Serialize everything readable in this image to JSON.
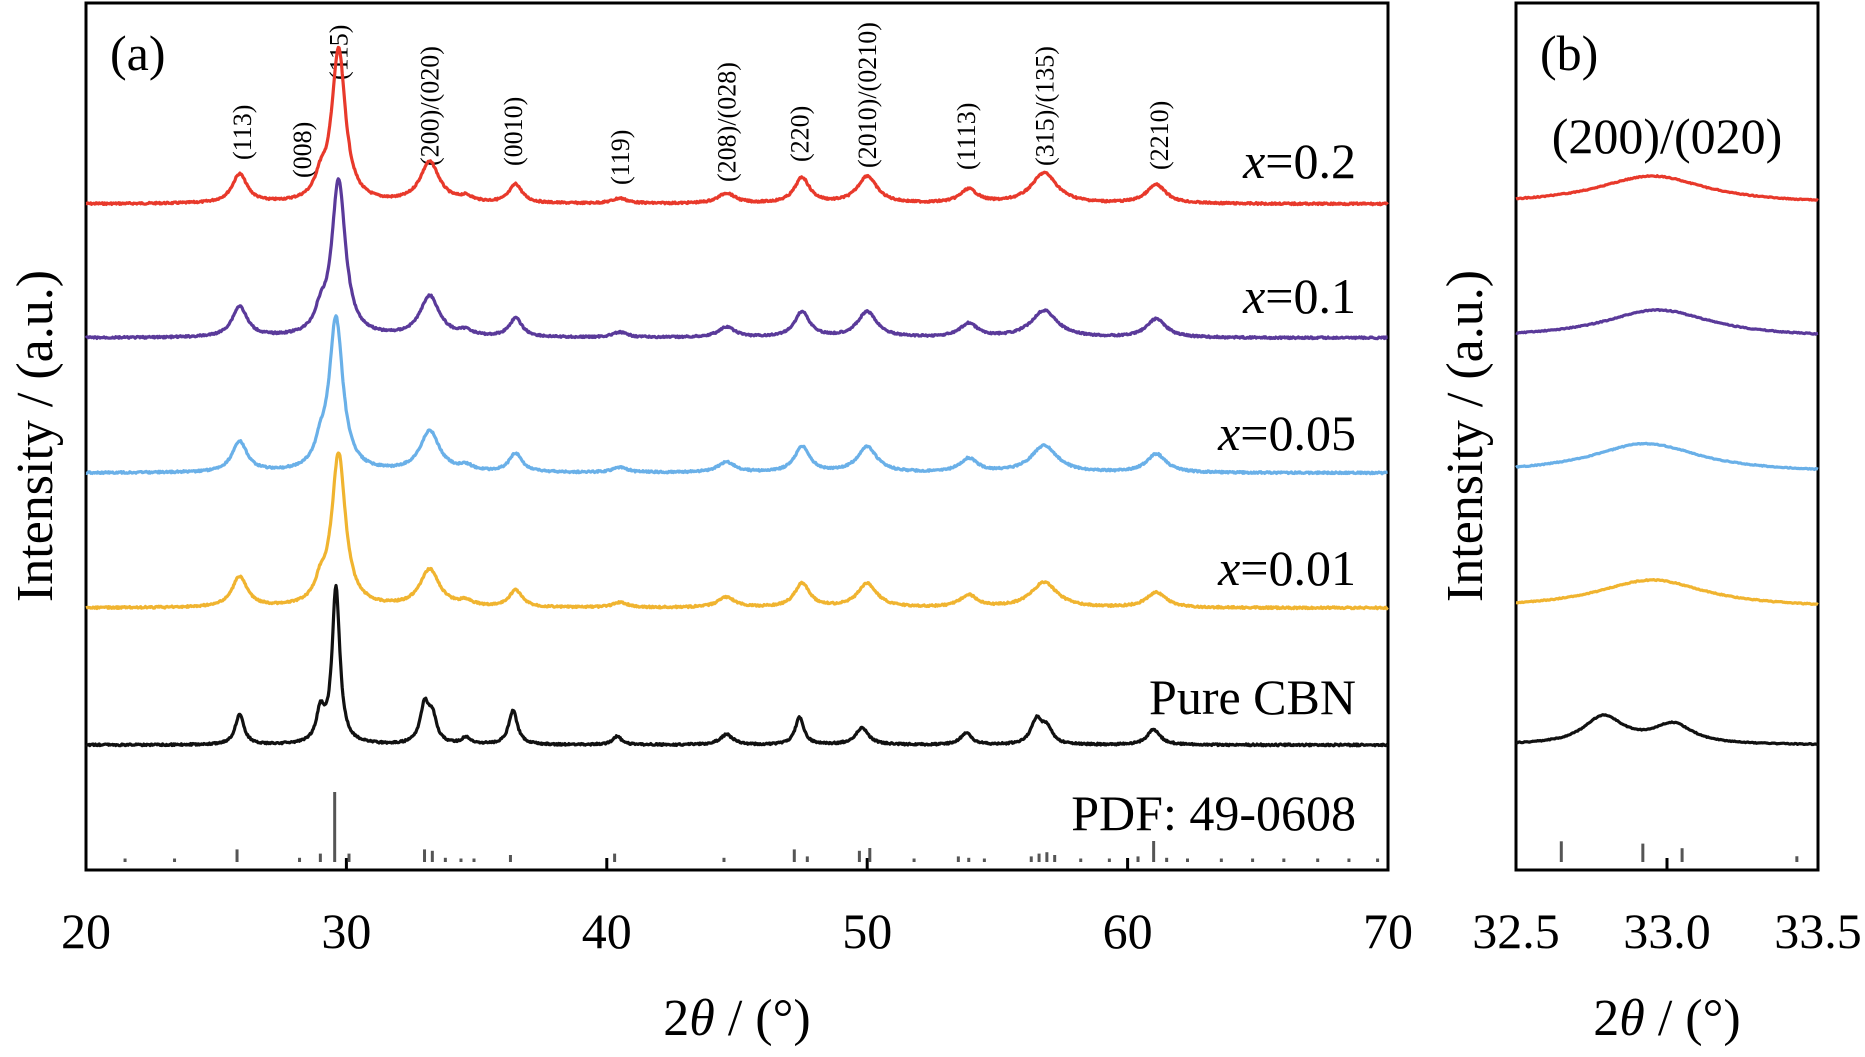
{
  "chart_data": [
    {
      "type": "line",
      "panel_label": "(a)",
      "xlabel_prefix": "2",
      "xlabel_symbol": "θ",
      "xlabel_suffix": " / (°)",
      "ylabel": "Intensity / (a.u.)",
      "xlim": [
        20,
        70
      ],
      "x_ticks": [
        20,
        30,
        40,
        50,
        60,
        70
      ],
      "y_ticks": "none",
      "grid": false,
      "stack_offsets": [
        5,
        4,
        3,
        2,
        1
      ],
      "hkl_labels": [
        {
          "text": "(113)",
          "x": 26.0
        },
        {
          "text": "(008)",
          "x": 28.3
        },
        {
          "text": "(115)",
          "x": 29.7
        },
        {
          "text": "(200)/(020)",
          "x": 33.2
        },
        {
          "text": "(0010)",
          "x": 36.4
        },
        {
          "text": "(119)",
          "x": 40.5
        },
        {
          "text": "(208)/(028)",
          "x": 44.6
        },
        {
          "text": "(220)",
          "x": 47.4
        },
        {
          "text": "(2010)/(0210)",
          "x": 50.0
        },
        {
          "text": "(1113)",
          "x": 53.8
        },
        {
          "text": "(315)/(135)",
          "x": 56.8
        },
        {
          "text": "(2210)",
          "x": 61.2
        }
      ],
      "series": [
        {
          "name_prefix": "x",
          "name_suffix": "=0.2",
          "color": "#e8392b",
          "offset": 5,
          "peaks": [
            {
              "x": 25.9,
              "h": 0.17,
              "w": 0.35
            },
            {
              "x": 29.0,
              "h": 0.1,
              "w": 0.25
            },
            {
              "x": 29.7,
              "h": 0.9,
              "w": 0.32
            },
            {
              "x": 33.2,
              "h": 0.24,
              "w": 0.45
            },
            {
              "x": 34.6,
              "h": 0.03,
              "w": 0.3
            },
            {
              "x": 36.5,
              "h": 0.11,
              "w": 0.3
            },
            {
              "x": 40.5,
              "h": 0.03,
              "w": 0.35
            },
            {
              "x": 44.6,
              "h": 0.06,
              "w": 0.4
            },
            {
              "x": 47.5,
              "h": 0.15,
              "w": 0.35
            },
            {
              "x": 50.0,
              "h": 0.16,
              "w": 0.45
            },
            {
              "x": 53.9,
              "h": 0.08,
              "w": 0.4
            },
            {
              "x": 56.8,
              "h": 0.18,
              "w": 0.6
            },
            {
              "x": 61.1,
              "h": 0.11,
              "w": 0.45
            }
          ]
        },
        {
          "name_prefix": "x",
          "name_suffix": "=0.1",
          "color": "#5a3a9a",
          "offset": 4,
          "peaks": [
            {
              "x": 25.9,
              "h": 0.18,
              "w": 0.35
            },
            {
              "x": 29.0,
              "h": 0.1,
              "w": 0.25
            },
            {
              "x": 29.7,
              "h": 0.92,
              "w": 0.32
            },
            {
              "x": 33.2,
              "h": 0.24,
              "w": 0.45
            },
            {
              "x": 34.6,
              "h": 0.03,
              "w": 0.3
            },
            {
              "x": 36.5,
              "h": 0.11,
              "w": 0.3
            },
            {
              "x": 40.5,
              "h": 0.03,
              "w": 0.35
            },
            {
              "x": 44.6,
              "h": 0.06,
              "w": 0.4
            },
            {
              "x": 47.5,
              "h": 0.15,
              "w": 0.35
            },
            {
              "x": 50.0,
              "h": 0.15,
              "w": 0.45
            },
            {
              "x": 53.9,
              "h": 0.08,
              "w": 0.4
            },
            {
              "x": 56.8,
              "h": 0.16,
              "w": 0.6
            },
            {
              "x": 61.1,
              "h": 0.11,
              "w": 0.45
            }
          ]
        },
        {
          "name_prefix": "x",
          "name_suffix": "=0.05",
          "color": "#6ab0e8",
          "offset": 3,
          "peaks": [
            {
              "x": 25.9,
              "h": 0.18,
              "w": 0.35
            },
            {
              "x": 29.0,
              "h": 0.1,
              "w": 0.25
            },
            {
              "x": 29.6,
              "h": 0.9,
              "w": 0.32
            },
            {
              "x": 33.2,
              "h": 0.24,
              "w": 0.45
            },
            {
              "x": 34.6,
              "h": 0.03,
              "w": 0.3
            },
            {
              "x": 36.5,
              "h": 0.11,
              "w": 0.3
            },
            {
              "x": 40.5,
              "h": 0.03,
              "w": 0.35
            },
            {
              "x": 44.6,
              "h": 0.06,
              "w": 0.4
            },
            {
              "x": 47.5,
              "h": 0.15,
              "w": 0.35
            },
            {
              "x": 50.0,
              "h": 0.15,
              "w": 0.45
            },
            {
              "x": 53.9,
              "h": 0.08,
              "w": 0.4
            },
            {
              "x": 56.8,
              "h": 0.16,
              "w": 0.6
            },
            {
              "x": 61.1,
              "h": 0.11,
              "w": 0.45
            }
          ]
        },
        {
          "name_prefix": "x",
          "name_suffix": "=0.01",
          "color": "#f0b430",
          "offset": 2,
          "peaks": [
            {
              "x": 25.9,
              "h": 0.18,
              "w": 0.35
            },
            {
              "x": 29.0,
              "h": 0.1,
              "w": 0.25
            },
            {
              "x": 29.7,
              "h": 0.9,
              "w": 0.32
            },
            {
              "x": 33.2,
              "h": 0.22,
              "w": 0.45
            },
            {
              "x": 34.6,
              "h": 0.03,
              "w": 0.3
            },
            {
              "x": 36.5,
              "h": 0.1,
              "w": 0.3
            },
            {
              "x": 40.5,
              "h": 0.03,
              "w": 0.35
            },
            {
              "x": 44.6,
              "h": 0.06,
              "w": 0.4
            },
            {
              "x": 47.5,
              "h": 0.14,
              "w": 0.35
            },
            {
              "x": 50.0,
              "h": 0.14,
              "w": 0.45
            },
            {
              "x": 53.9,
              "h": 0.07,
              "w": 0.4
            },
            {
              "x": 56.8,
              "h": 0.15,
              "w": 0.6
            },
            {
              "x": 61.1,
              "h": 0.09,
              "w": 0.45
            }
          ]
        },
        {
          "name_prefix": "",
          "name_suffix": "Pure CBN",
          "color": "#111111",
          "offset": 1,
          "peaks": [
            {
              "x": 25.9,
              "h": 0.18,
              "w": 0.2
            },
            {
              "x": 29.0,
              "h": 0.18,
              "w": 0.18
            },
            {
              "x": 29.6,
              "h": 0.92,
              "w": 0.18
            },
            {
              "x": 33.0,
              "h": 0.22,
              "w": 0.2
            },
            {
              "x": 33.3,
              "h": 0.15,
              "w": 0.2
            },
            {
              "x": 34.6,
              "h": 0.04,
              "w": 0.2
            },
            {
              "x": 36.4,
              "h": 0.2,
              "w": 0.2
            },
            {
              "x": 40.4,
              "h": 0.05,
              "w": 0.2
            },
            {
              "x": 44.6,
              "h": 0.06,
              "w": 0.3
            },
            {
              "x": 47.4,
              "h": 0.16,
              "w": 0.2
            },
            {
              "x": 49.8,
              "h": 0.1,
              "w": 0.3
            },
            {
              "x": 53.8,
              "h": 0.07,
              "w": 0.25
            },
            {
              "x": 56.5,
              "h": 0.14,
              "w": 0.25
            },
            {
              "x": 56.9,
              "h": 0.09,
              "w": 0.25
            },
            {
              "x": 61.0,
              "h": 0.09,
              "w": 0.3
            }
          ]
        }
      ],
      "reference": {
        "label": "PDF: 49-0608",
        "color": "#555555",
        "sticks": [
          {
            "x": 21.5,
            "h": 0.05
          },
          {
            "x": 23.4,
            "h": 0.05
          },
          {
            "x": 25.8,
            "h": 0.18
          },
          {
            "x": 28.2,
            "h": 0.06
          },
          {
            "x": 29.0,
            "h": 0.12
          },
          {
            "x": 29.55,
            "h": 1.0
          },
          {
            "x": 30.1,
            "h": 0.12
          },
          {
            "x": 33.0,
            "h": 0.18
          },
          {
            "x": 33.3,
            "h": 0.16
          },
          {
            "x": 33.8,
            "h": 0.06
          },
          {
            "x": 34.4,
            "h": 0.05
          },
          {
            "x": 34.9,
            "h": 0.05
          },
          {
            "x": 36.3,
            "h": 0.1
          },
          {
            "x": 40.3,
            "h": 0.12
          },
          {
            "x": 44.5,
            "h": 0.06
          },
          {
            "x": 47.2,
            "h": 0.18
          },
          {
            "x": 47.7,
            "h": 0.08
          },
          {
            "x": 49.7,
            "h": 0.16
          },
          {
            "x": 50.1,
            "h": 0.2
          },
          {
            "x": 51.8,
            "h": 0.05
          },
          {
            "x": 53.5,
            "h": 0.08
          },
          {
            "x": 53.9,
            "h": 0.06
          },
          {
            "x": 54.5,
            "h": 0.05
          },
          {
            "x": 56.3,
            "h": 0.08
          },
          {
            "x": 56.6,
            "h": 0.12
          },
          {
            "x": 56.9,
            "h": 0.14
          },
          {
            "x": 57.2,
            "h": 0.1
          },
          {
            "x": 58.2,
            "h": 0.05
          },
          {
            "x": 59.3,
            "h": 0.05
          },
          {
            "x": 60.4,
            "h": 0.08
          },
          {
            "x": 61.0,
            "h": 0.3
          },
          {
            "x": 61.5,
            "h": 0.06
          },
          {
            "x": 62.3,
            "h": 0.05
          },
          {
            "x": 63.6,
            "h": 0.05
          },
          {
            "x": 64.8,
            "h": 0.05
          },
          {
            "x": 66.0,
            "h": 0.05
          },
          {
            "x": 67.3,
            "h": 0.05
          },
          {
            "x": 68.5,
            "h": 0.05
          },
          {
            "x": 69.6,
            "h": 0.05
          }
        ]
      }
    },
    {
      "type": "line",
      "panel_label": "(b)",
      "title": "(200)/(020)",
      "xlabel_prefix": "2",
      "xlabel_symbol": "θ",
      "xlabel_suffix": " / (°)",
      "ylabel": "Intensity / (a.u.)",
      "xlim": [
        32.5,
        33.5
      ],
      "x_ticks": [
        "32.5",
        "33.0",
        "33.5"
      ],
      "y_ticks": "none",
      "grid": false,
      "series": [
        {
          "name": "x=0.2",
          "color": "#e8392b",
          "offset": 5,
          "peaks": [
            {
              "x": 32.95,
              "h": 0.2,
              "w": 0.22
            }
          ]
        },
        {
          "name": "x=0.1",
          "color": "#5a3a9a",
          "offset": 4,
          "peaks": [
            {
              "x": 32.97,
              "h": 0.2,
              "w": 0.22
            }
          ]
        },
        {
          "name": "x=0.05",
          "color": "#6ab0e8",
          "offset": 3,
          "peaks": [
            {
              "x": 32.93,
              "h": 0.21,
              "w": 0.22
            }
          ]
        },
        {
          "name": "x=0.01",
          "color": "#f0b430",
          "offset": 2,
          "peaks": [
            {
              "x": 32.95,
              "h": 0.2,
              "w": 0.22
            }
          ]
        },
        {
          "name": "Pure CBN",
          "color": "#111111",
          "offset": 1,
          "peaks": [
            {
              "x": 32.79,
              "h": 0.2,
              "w": 0.08
            },
            {
              "x": 33.02,
              "h": 0.14,
              "w": 0.08
            }
          ]
        }
      ],
      "reference": {
        "color": "#555555",
        "sticks": [
          {
            "x": 32.65,
            "h": 0.18
          },
          {
            "x": 32.92,
            "h": 0.16
          },
          {
            "x": 33.05,
            "h": 0.12
          },
          {
            "x": 33.43,
            "h": 0.05
          }
        ]
      }
    }
  ]
}
